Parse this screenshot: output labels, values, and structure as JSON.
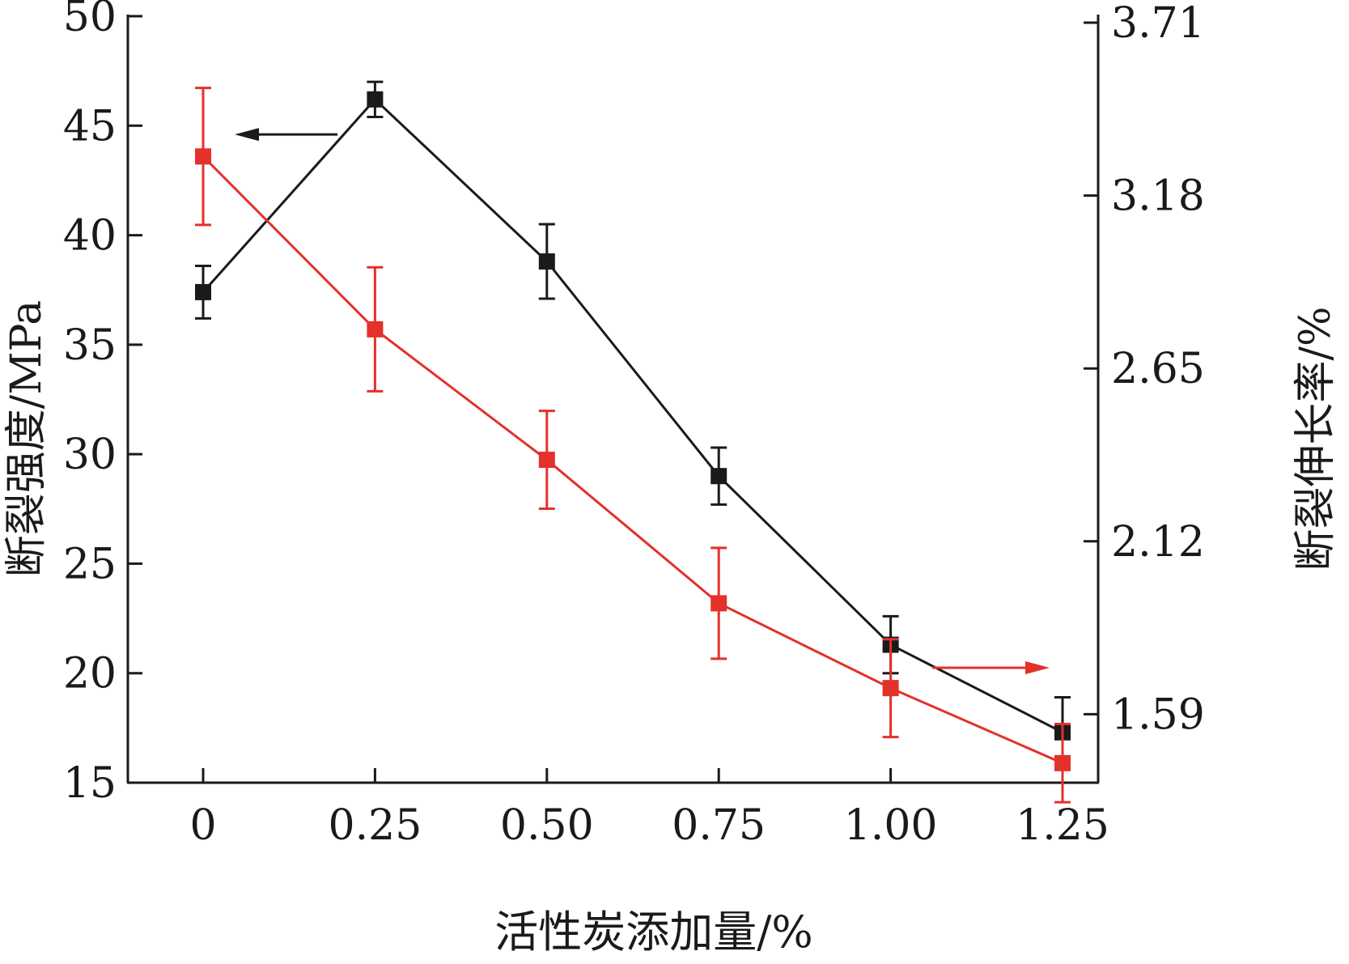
{
  "chart_data": {
    "type": "line",
    "x": [
      0,
      0.25,
      0.5,
      0.75,
      1.0,
      1.25
    ],
    "x_tick_labels": [
      "0",
      "0.25",
      "0.50",
      "0.75",
      "1.00",
      "1.25"
    ],
    "xlabel": "活性炭添加量/%",
    "ylabel_left": "断裂强度/MPa",
    "ylabel_right": "断裂伸长率/%",
    "ylim_left": [
      15,
      50
    ],
    "yticks_left": [
      15,
      20,
      25,
      30,
      35,
      40,
      45,
      50
    ],
    "ylim_right": [
      1.38,
      3.73
    ],
    "yticks_right": [
      "1.59",
      "2.12",
      "2.65",
      "3.18",
      "3.71"
    ],
    "grid": false,
    "series": [
      {
        "axis": "left",
        "color": "#1a1a1a",
        "values": [
          37.4,
          46.2,
          38.8,
          29.0,
          21.3,
          17.3
        ],
        "err": [
          1.2,
          0.8,
          1.7,
          1.3,
          1.3,
          1.6
        ]
      },
      {
        "axis": "right",
        "color": "#e3312b",
        "values": [
          3.3,
          2.77,
          2.37,
          1.93,
          1.67,
          1.44
        ],
        "err": [
          0.21,
          0.19,
          0.15,
          0.17,
          0.15,
          0.12
        ]
      }
    ],
    "annotations": [
      {
        "type": "arrow",
        "direction": "left",
        "series": 0
      },
      {
        "type": "arrow",
        "direction": "right",
        "series": 1
      }
    ]
  }
}
